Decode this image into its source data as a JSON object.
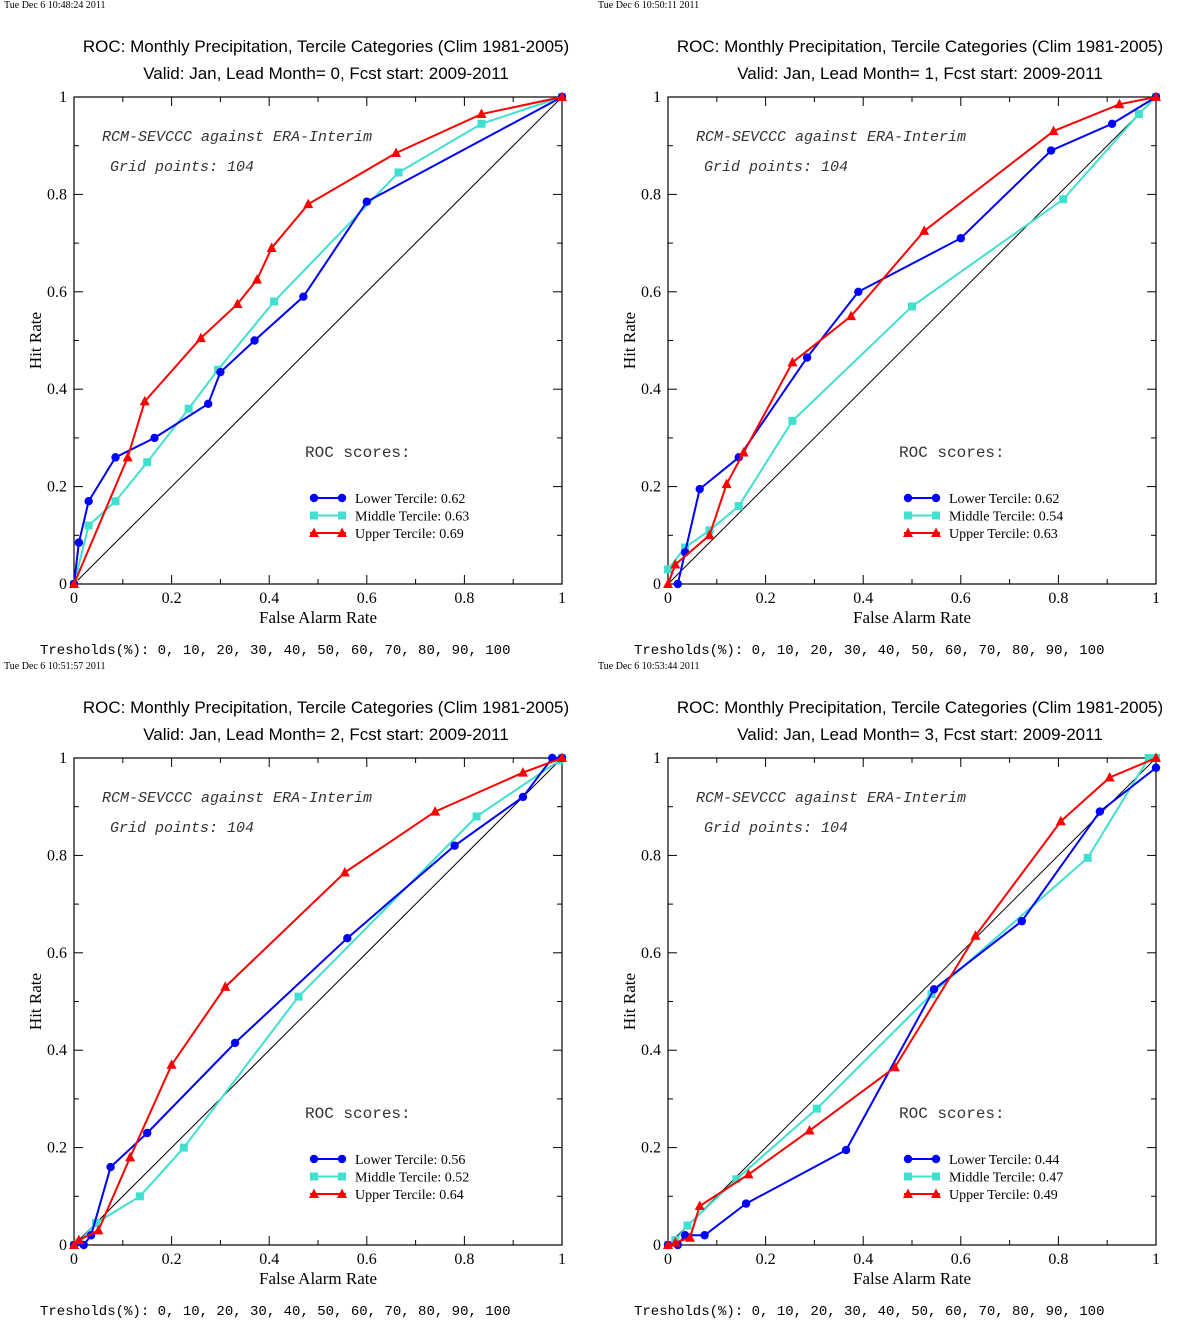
{
  "panels": [
    {
      "timestamp": "Tue Dec  6 10:48:24 2011",
      "title": "ROC: Monthly Precipitation, Tercile Categories (Clim 1981-2005)",
      "subtitle": "Valid: Jan, Lead Month= 0, Fcst start: 2009-2011",
      "thresholds": "Tresholds(%): 0, 10, 20, 30, 40, 50, 60, 70, 80, 90, 100"
    },
    {
      "timestamp": "Tue Dec  6 10:50:11 2011",
      "title": "ROC: Monthly Precipitation, Tercile Categories (Clim 1981-2005)",
      "subtitle": "Valid: Jan, Lead Month= 1, Fcst start: 2009-2011",
      "thresholds": "Tresholds(%): 0, 10, 20, 30, 40, 50, 60, 70, 80, 90, 100"
    },
    {
      "timestamp": "Tue Dec  6 10:51:57 2011",
      "title": "ROC: Monthly Precipitation, Tercile Categories (Clim 1981-2005)",
      "subtitle": "Valid: Jan, Lead Month= 2, Fcst start: 2009-2011",
      "thresholds": "Tresholds(%): 0, 10, 20, 30, 40, 50, 60, 70, 80, 90, 100"
    },
    {
      "timestamp": "Tue Dec  6 10:53:44 2011",
      "title": "ROC: Monthly Precipitation, Tercile Categories (Clim 1981-2005)",
      "subtitle": "Valid: Jan, Lead Month= 3, Fcst start: 2009-2011",
      "thresholds": "Tresholds(%): 0, 10, 20, 30, 40, 50, 60, 70, 80, 90, 100"
    }
  ],
  "colors": {
    "lower": "#0000ff",
    "middle": "#40e0d0",
    "upper": "#ff0000",
    "diagonal": "#000000"
  },
  "chart_data": [
    {
      "type": "line",
      "xlabel": "False Alarm Rate",
      "ylabel": "Hit Rate",
      "xlim": [
        0,
        1
      ],
      "ylim": [
        0,
        1
      ],
      "xticks": [
        "0",
        "0.2",
        "0.4",
        "0.6",
        "0.8",
        "1"
      ],
      "yticks": [
        "0",
        "0.2",
        "0.4",
        "0.6",
        "0.8",
        "1"
      ],
      "annotation1": "RCM-SEVCCC against ERA-Interim",
      "annotation2": "Grid points:  104",
      "legend_title": "ROC scores:",
      "legend_position": "bottom-right",
      "series": [
        {
          "name": "Lower Tercile: 0.62",
          "marker": "circle",
          "x": [
            0,
            0.01,
            0.03,
            0.085,
            0.165,
            0.275,
            0.3,
            0.37,
            0.47,
            0.6,
            1.0
          ],
          "y": [
            0,
            0.085,
            0.17,
            0.26,
            0.3,
            0.37,
            0.435,
            0.5,
            0.59,
            0.785,
            1.0
          ]
        },
        {
          "name": "Middle Tercile: 0.63",
          "marker": "square",
          "x": [
            0,
            0.03,
            0.085,
            0.15,
            0.235,
            0.295,
            0.41,
            0.665,
            0.835,
            1.0
          ],
          "y": [
            0,
            0.12,
            0.17,
            0.25,
            0.36,
            0.44,
            0.58,
            0.845,
            0.945,
            1.0
          ]
        },
        {
          "name": "Upper Tercile: 0.69",
          "marker": "triangle",
          "x": [
            0,
            0.11,
            0.145,
            0.26,
            0.335,
            0.375,
            0.405,
            0.48,
            0.66,
            0.835,
            1.0
          ],
          "y": [
            0,
            0.26,
            0.375,
            0.505,
            0.575,
            0.625,
            0.69,
            0.78,
            0.885,
            0.965,
            1.0
          ]
        }
      ]
    },
    {
      "type": "line",
      "xlabel": "False Alarm Rate",
      "ylabel": "Hit Rate",
      "xlim": [
        0,
        1
      ],
      "ylim": [
        0,
        1
      ],
      "xticks": [
        "0",
        "0.2",
        "0.4",
        "0.6",
        "0.8",
        "1"
      ],
      "yticks": [
        "0",
        "0.2",
        "0.4",
        "0.6",
        "0.8",
        "1"
      ],
      "annotation1": "RCM-SEVCCC against ERA-Interim",
      "annotation2": "Grid points:  104",
      "legend_title": "ROC scores:",
      "legend_position": "bottom-right",
      "series": [
        {
          "name": "Lower Tercile: 0.62",
          "marker": "circle",
          "x": [
            0.02,
            0.035,
            0.065,
            0.145,
            0.285,
            0.39,
            0.6,
            0.785,
            0.91,
            1.0
          ],
          "y": [
            0,
            0.065,
            0.195,
            0.26,
            0.465,
            0.6,
            0.71,
            0.89,
            0.945,
            1.0
          ]
        },
        {
          "name": "Middle Tercile: 0.54",
          "marker": "square",
          "x": [
            0,
            0.035,
            0.085,
            0.145,
            0.255,
            0.5,
            0.81,
            0.965,
            1.0
          ],
          "y": [
            0.03,
            0.075,
            0.11,
            0.16,
            0.335,
            0.57,
            0.79,
            0.965,
            1.0
          ]
        },
        {
          "name": "Upper Tercile: 0.63",
          "marker": "triangle",
          "x": [
            0,
            0.015,
            0.085,
            0.12,
            0.155,
            0.255,
            0.375,
            0.525,
            0.79,
            0.925,
            1.0
          ],
          "y": [
            0,
            0.04,
            0.1,
            0.205,
            0.27,
            0.455,
            0.55,
            0.725,
            0.93,
            0.985,
            1.0
          ]
        }
      ]
    },
    {
      "type": "line",
      "xlabel": "False Alarm Rate",
      "ylabel": "Hit Rate",
      "xlim": [
        0,
        1
      ],
      "ylim": [
        0,
        1
      ],
      "xticks": [
        "0",
        "0.2",
        "0.4",
        "0.6",
        "0.8",
        "1"
      ],
      "yticks": [
        "0",
        "0.2",
        "0.4",
        "0.6",
        "0.8",
        "1"
      ],
      "annotation1": "RCM-SEVCCC against ERA-Interim",
      "annotation2": "Grid points:  104",
      "legend_title": "ROC scores:",
      "legend_position": "bottom-right",
      "series": [
        {
          "name": "Lower Tercile: 0.56",
          "marker": "circle",
          "x": [
            0,
            0.02,
            0.035,
            0.075,
            0.15,
            0.33,
            0.56,
            0.78,
            0.92,
            0.98,
            1.0
          ],
          "y": [
            0,
            0,
            0.02,
            0.16,
            0.23,
            0.415,
            0.63,
            0.82,
            0.92,
            1.0,
            1.0
          ]
        },
        {
          "name": "Middle Tercile: 0.52",
          "marker": "square",
          "x": [
            0,
            0.01,
            0.045,
            0.135,
            0.225,
            0.46,
            0.825,
            0.995,
            1.0
          ],
          "y": [
            0,
            0.005,
            0.045,
            0.1,
            0.2,
            0.51,
            0.88,
            0.995,
            1.0
          ]
        },
        {
          "name": "Upper Tercile: 0.64",
          "marker": "triangle",
          "x": [
            0,
            0.01,
            0.05,
            0.115,
            0.2,
            0.31,
            0.555,
            0.74,
            0.92,
            1.0
          ],
          "y": [
            0,
            0.01,
            0.03,
            0.18,
            0.37,
            0.53,
            0.765,
            0.89,
            0.97,
            1.0
          ]
        }
      ]
    },
    {
      "type": "line",
      "xlabel": "False Alarm Rate",
      "ylabel": "Hit Rate",
      "xlim": [
        0,
        1
      ],
      "ylim": [
        0,
        1
      ],
      "xticks": [
        "0",
        "0.2",
        "0.4",
        "0.6",
        "0.8",
        "1"
      ],
      "yticks": [
        "0",
        "0.2",
        "0.4",
        "0.6",
        "0.8",
        "1"
      ],
      "annotation1": "RCM-SEVCCC against ERA-Interim",
      "annotation2": "Grid points:  104",
      "legend_title": "ROC scores:",
      "legend_position": "bottom-right",
      "series": [
        {
          "name": "Lower Tercile: 0.44",
          "marker": "circle",
          "x": [
            0,
            0.02,
            0.035,
            0.075,
            0.16,
            0.365,
            0.545,
            0.725,
            0.885,
            1.0
          ],
          "y": [
            0,
            0,
            0.02,
            0.02,
            0.085,
            0.195,
            0.525,
            0.665,
            0.89,
            0.98
          ]
        },
        {
          "name": "Middle Tercile: 0.47",
          "marker": "square",
          "x": [
            0,
            0.015,
            0.04,
            0.14,
            0.305,
            0.54,
            0.86,
            0.985,
            1.0
          ],
          "y": [
            0,
            0.01,
            0.04,
            0.135,
            0.28,
            0.515,
            0.795,
            1.0,
            1.0
          ]
        },
        {
          "name": "Upper Tercile: 0.49",
          "marker": "triangle",
          "x": [
            0,
            0.015,
            0.045,
            0.065,
            0.165,
            0.29,
            0.465,
            0.63,
            0.805,
            0.905,
            1.0
          ],
          "y": [
            0,
            0.005,
            0.015,
            0.08,
            0.145,
            0.235,
            0.365,
            0.635,
            0.87,
            0.96,
            1.0
          ]
        }
      ]
    }
  ]
}
